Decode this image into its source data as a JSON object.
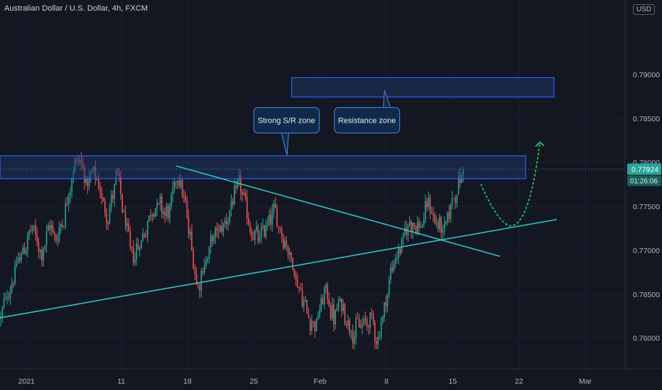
{
  "header": {
    "title": "Australian Dollar / U.S. Dollar, 4h, FXCM",
    "currency": "USD"
  },
  "colors": {
    "background": "#131722",
    "up": "#26a69a",
    "down": "#ef5350",
    "trendline": "#2ec4c0",
    "zone_border": "#2962ff",
    "zone_fill": "#1e3a6e",
    "projection": "#22c55e",
    "axis_text": "#b2b5be",
    "price_tag": "#26a69a",
    "callout_bg": "#0f2a4a"
  },
  "chart_data": {
    "type": "candlestick",
    "symbol": "AUDUSD",
    "timeframe": "4h",
    "ylim": [
      0.7565,
      0.7985
    ],
    "y_ticks": [
      "0.78500",
      "0.78000",
      "0.77500",
      "0.77000",
      "0.76500",
      "0.76000"
    ],
    "y_tick_values": [
      0.785,
      0.78,
      0.775,
      0.77,
      0.765,
      0.76
    ],
    "top_tick_partial": "0.79000",
    "x_ticks": [
      "2021",
      "11",
      "18",
      "25",
      "Feb",
      "8",
      "15",
      "22",
      "Mar"
    ],
    "x_tick_days": [
      0,
      10,
      17,
      24,
      31,
      38,
      45,
      52,
      59
    ],
    "x_range_days": [
      -2.8,
      63.2
    ],
    "last_day": 46.2,
    "current_price": "0.77924",
    "current_price_value": 0.77924,
    "countdown": "01:26:06",
    "anchors": [
      [
        -2.8,
        0.7622
      ],
      [
        -1.5,
        0.767
      ],
      [
        0.5,
        0.7725
      ],
      [
        1.5,
        0.7695
      ],
      [
        2.5,
        0.773
      ],
      [
        3.0,
        0.771
      ],
      [
        4.0,
        0.7745
      ],
      [
        5.0,
        0.78
      ],
      [
        5.6,
        0.7805
      ],
      [
        6.5,
        0.777
      ],
      [
        7.0,
        0.7787
      ],
      [
        8.5,
        0.774
      ],
      [
        9.5,
        0.7785
      ],
      [
        11.0,
        0.769
      ],
      [
        12.0,
        0.771
      ],
      [
        13.5,
        0.7755
      ],
      [
        15.0,
        0.774
      ],
      [
        16.0,
        0.7795
      ],
      [
        17.5,
        0.7695
      ],
      [
        18.0,
        0.766
      ],
      [
        19.5,
        0.771
      ],
      [
        21.0,
        0.7735
      ],
      [
        22.5,
        0.7775
      ],
      [
        23.5,
        0.7725
      ],
      [
        24.5,
        0.771
      ],
      [
        26.0,
        0.7745
      ],
      [
        27.5,
        0.7705
      ],
      [
        28.5,
        0.7665
      ],
      [
        29.5,
        0.763
      ],
      [
        30.5,
        0.7615
      ],
      [
        31.5,
        0.7655
      ],
      [
        32.5,
        0.762
      ],
      [
        33.0,
        0.764
      ],
      [
        34.5,
        0.7608
      ],
      [
        35.5,
        0.7615
      ],
      [
        36.5,
        0.7622
      ],
      [
        37.0,
        0.7595
      ],
      [
        38.0,
        0.765
      ],
      [
        38.5,
        0.768
      ],
      [
        39.5,
        0.7705
      ],
      [
        40.5,
        0.7735
      ],
      [
        41.5,
        0.7725
      ],
      [
        42.5,
        0.7755
      ],
      [
        43.0,
        0.7735
      ],
      [
        44.0,
        0.772
      ],
      [
        45.0,
        0.7762
      ],
      [
        46.2,
        0.7792
      ]
    ],
    "zones": [
      {
        "name": "Resistance zone",
        "day_from": 28.0,
        "day_to": 55.7,
        "price_low": 0.78745,
        "price_high": 0.78965
      },
      {
        "name": "Strong S/R zone",
        "day_from": -2.8,
        "day_to": 52.7,
        "price_low": 0.77815,
        "price_high": 0.78075
      }
    ],
    "trendlines": [
      {
        "name": "descending",
        "from": [
          15.8,
          0.7796
        ],
        "to": [
          50.0,
          0.7693
        ]
      },
      {
        "name": "ascending",
        "from": [
          -2.8,
          0.7623
        ],
        "to": [
          56.0,
          0.7735
        ]
      }
    ],
    "projection": {
      "points": [
        [
          48.0,
          0.7775
        ],
        [
          51.3,
          0.7728
        ],
        [
          53.9,
          0.7806
        ]
      ],
      "arrow_tip": [
        54.2,
        0.7823
      ]
    },
    "annotations": [
      {
        "text": "Strong S/R zone",
        "anchor_day": 24.0,
        "anchor_price": 0.7848,
        "pointer_to": [
          27.5,
          0.7808
        ]
      },
      {
        "text": "Resistance zone",
        "anchor_day": 32.5,
        "anchor_price": 0.7848,
        "pointer_to": [
          37.8,
          0.7882
        ]
      }
    ]
  }
}
